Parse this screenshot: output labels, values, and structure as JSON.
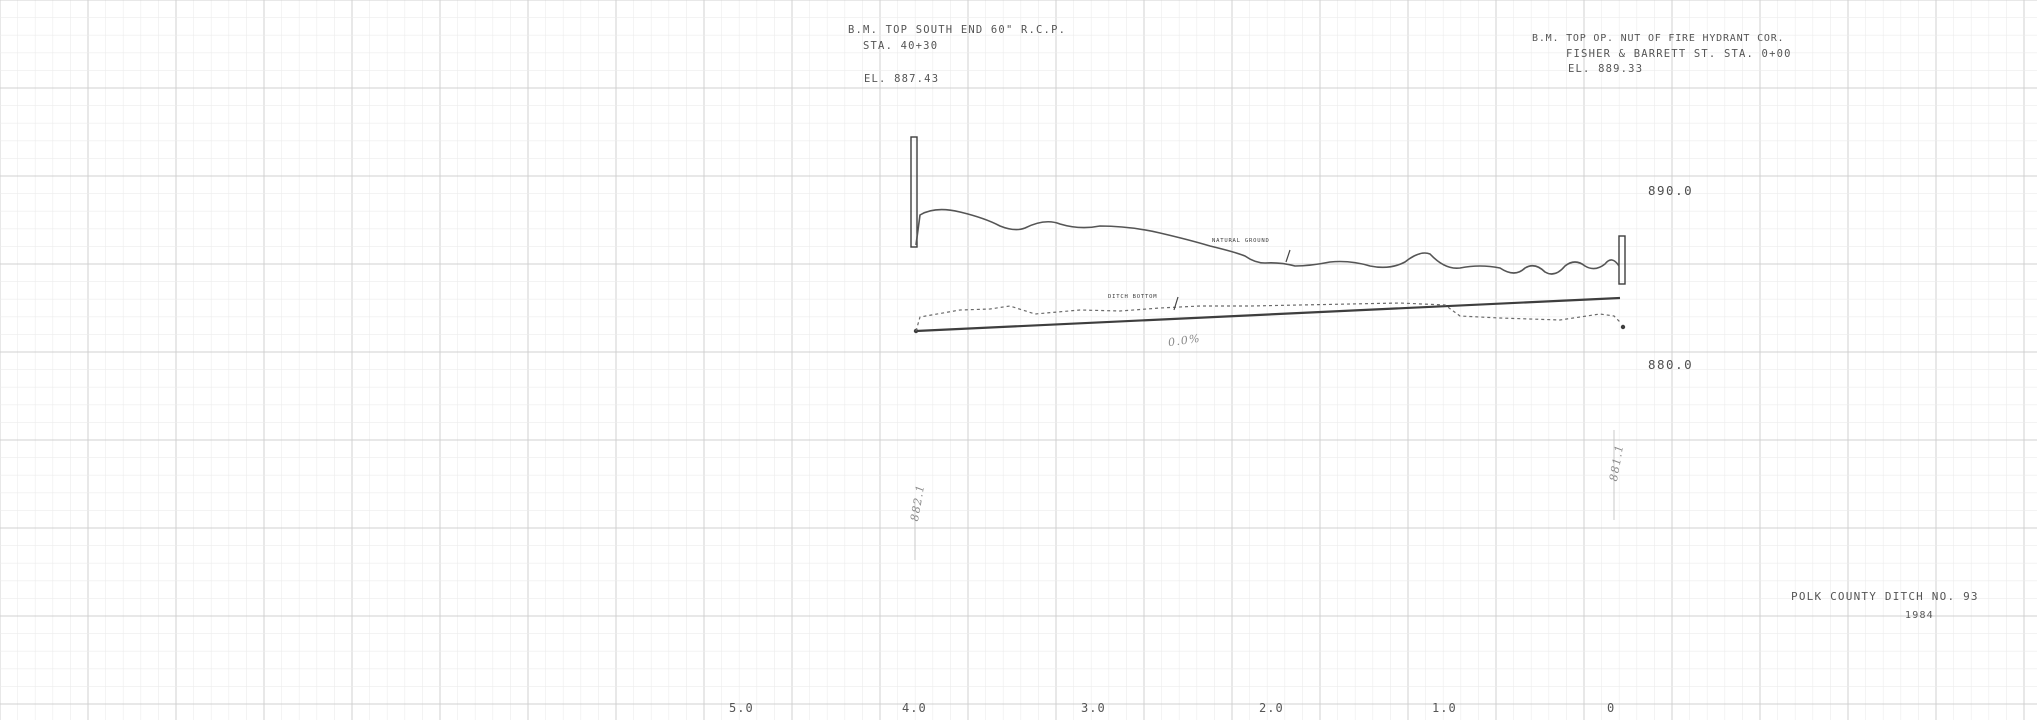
{
  "benchmark_left": {
    "line1": "B.M. TOP SOUTH END 60\" R.C.P.",
    "line2": "STA. 40+30",
    "line3": "EL. 887.43"
  },
  "benchmark_right": {
    "line1": "B.M. TOP OP. NUT OF FIRE HYDRANT COR.",
    "line2": "FISHER & BARRETT ST.  STA. 0+00",
    "line3": "EL. 889.33"
  },
  "elevation_labels": {
    "upper": "890.0",
    "lower": "880.0"
  },
  "annotations": {
    "natural_ground": "NATURAL GROUND",
    "ditch_bottom": "DITCH BOTTOM",
    "grade_mark": "0.0%",
    "left_elev_hand": "882.1",
    "right_elev_hand": "881.1"
  },
  "title_block": {
    "title": "POLK COUNTY DITCH NO. 93",
    "year": "1984"
  },
  "station_ticks": [
    "5.0",
    "4.0",
    "3.0",
    "2.0",
    "1.0",
    "0"
  ],
  "colors": {
    "grid": "#d8d8d8",
    "ink": "#555555",
    "line": "#3e3e3e"
  }
}
